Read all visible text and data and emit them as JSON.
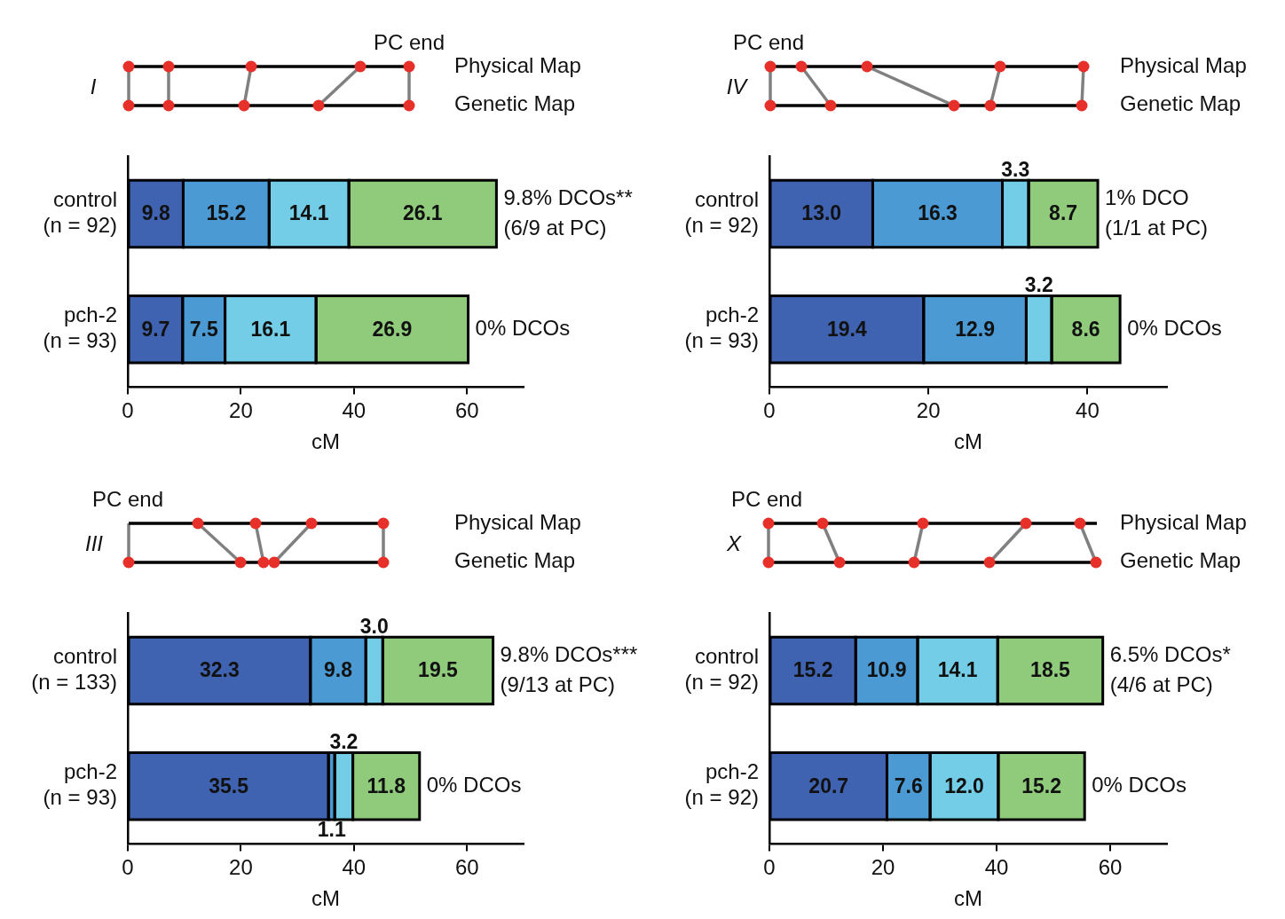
{
  "chart_data": [
    {
      "type": "bar",
      "orientation": "horizontal",
      "stacked": true,
      "xlabel": "cM",
      "categories": [
        "control (n = 92)",
        "pch-2 (n = 93)"
      ],
      "xlim": [
        0,
        70
      ],
      "xticks": [
        0,
        20,
        40,
        60
      ],
      "series": [
        {
          "color": "#3f63b0",
          "values": [
            9.8,
            9.7
          ],
          "value_labels": [
            "9.8",
            "9.7"
          ]
        },
        {
          "color": "#4b9ad4",
          "values": [
            15.2,
            7.5
          ],
          "value_labels": [
            "15.2",
            "7.5"
          ]
        },
        {
          "color": "#74cde6",
          "values": [
            14.1,
            16.1
          ],
          "value_labels": [
            "14.1",
            "16.1"
          ]
        },
        {
          "color": "#8fcb7b",
          "values": [
            26.1,
            26.9
          ],
          "value_labels": [
            "26.1",
            "26.9"
          ]
        }
      ],
      "annotations": [
        "I",
        "PC end",
        "Physical Map",
        "Genetic Map",
        {
          "text": "9.8% DCOs**",
          "x": 65.2,
          "y": "control (n = 92)"
        },
        {
          "text": "(6/9 at PC)",
          "x": 65.2,
          "y": "control (n = 92)"
        },
        {
          "text": "0% DCOs",
          "x": 60.2,
          "y": "pch-2 (n = 93)"
        }
      ]
    },
    {
      "type": "bar",
      "orientation": "horizontal",
      "stacked": true,
      "xlabel": "cM",
      "categories": [
        "control (n = 92)",
        "pch-2 (n = 93)"
      ],
      "xlim": [
        0,
        50
      ],
      "xticks": [
        0,
        20,
        40
      ],
      "series": [
        {
          "color": "#3f63b0",
          "values": [
            13.0,
            19.4
          ],
          "value_labels": [
            "13.0",
            "19.4"
          ]
        },
        {
          "color": "#4b9ad4",
          "values": [
            16.3,
            12.9
          ],
          "value_labels": [
            "16.3",
            "12.9"
          ]
        },
        {
          "color": "#74cde6",
          "values": [
            3.3,
            3.2
          ],
          "value_labels": [
            "3.3",
            "3.2"
          ]
        },
        {
          "color": "#8fcb7b",
          "values": [
            8.7,
            8.6
          ],
          "value_labels": [
            "8.7",
            "8.6"
          ]
        }
      ],
      "annotations": [
        "IV",
        "PC end",
        "Physical Map",
        "Genetic Map",
        {
          "text": "1% DCO",
          "x": 41.3,
          "y": "control (n = 92)"
        },
        {
          "text": "(1/1 at PC)",
          "x": 41.3,
          "y": "control (n = 92)"
        },
        {
          "text": "0% DCOs",
          "x": 44.1,
          "y": "pch-2 (n = 93)"
        }
      ]
    },
    {
      "type": "bar",
      "orientation": "horizontal",
      "stacked": true,
      "xlabel": "cM",
      "categories": [
        "control (n = 133)",
        "pch-2 (n = 93)"
      ],
      "xlim": [
        0,
        70
      ],
      "xticks": [
        0,
        20,
        40,
        60
      ],
      "series": [
        {
          "color": "#3f63b0",
          "values": [
            32.3,
            35.5
          ],
          "value_labels": [
            "32.3",
            "35.5"
          ]
        },
        {
          "color": "#4b9ad4",
          "values": [
            9.8,
            1.1
          ],
          "value_labels": [
            "9.8",
            "1.1"
          ]
        },
        {
          "color": "#74cde6",
          "values": [
            3.0,
            3.2
          ],
          "value_labels": [
            "3.0",
            "3.2"
          ]
        },
        {
          "color": "#8fcb7b",
          "values": [
            19.5,
            11.8
          ],
          "value_labels": [
            "19.5",
            "11.8"
          ]
        }
      ],
      "annotations": [
        "III",
        "PC end",
        "Physical Map",
        "Genetic Map",
        {
          "text": "9.8% DCOs***",
          "x": 64.6,
          "y": "control (n = 133)"
        },
        {
          "text": "(9/13 at PC)",
          "x": 64.6,
          "y": "control (n = 133)"
        },
        {
          "text": "0% DCOs",
          "x": 51.6,
          "y": "pch-2 (n = 93)"
        }
      ]
    },
    {
      "type": "bar",
      "orientation": "horizontal",
      "stacked": true,
      "xlabel": "cM",
      "categories": [
        "control (n = 92)",
        "pch-2 (n = 92)"
      ],
      "xlim": [
        0,
        70
      ],
      "xticks": [
        0,
        20,
        40,
        60
      ],
      "series": [
        {
          "color": "#3f63b0",
          "values": [
            15.2,
            20.7
          ],
          "value_labels": [
            "15.2",
            "20.7"
          ]
        },
        {
          "color": "#4b9ad4",
          "values": [
            10.9,
            7.6
          ],
          "value_labels": [
            "10.9",
            "7.6"
          ]
        },
        {
          "color": "#74cde6",
          "values": [
            14.1,
            12.0
          ],
          "value_labels": [
            "14.1",
            "12.0"
          ]
        },
        {
          "color": "#8fcb7b",
          "values": [
            18.5,
            15.2
          ],
          "value_labels": [
            "18.5",
            "15.2"
          ]
        }
      ],
      "annotations": [
        "X",
        "PC end",
        "Physical Map",
        "Genetic Map",
        {
          "text": "6.5% DCOs*",
          "x": 58.7,
          "y": "control (n = 92)"
        },
        {
          "text": "(4/6 at PC)",
          "x": 58.7,
          "y": "control (n = 92)"
        },
        {
          "text": "0% DCOs",
          "x": 55.5,
          "y": "pch-2 (n = 92)"
        }
      ]
    }
  ]
}
